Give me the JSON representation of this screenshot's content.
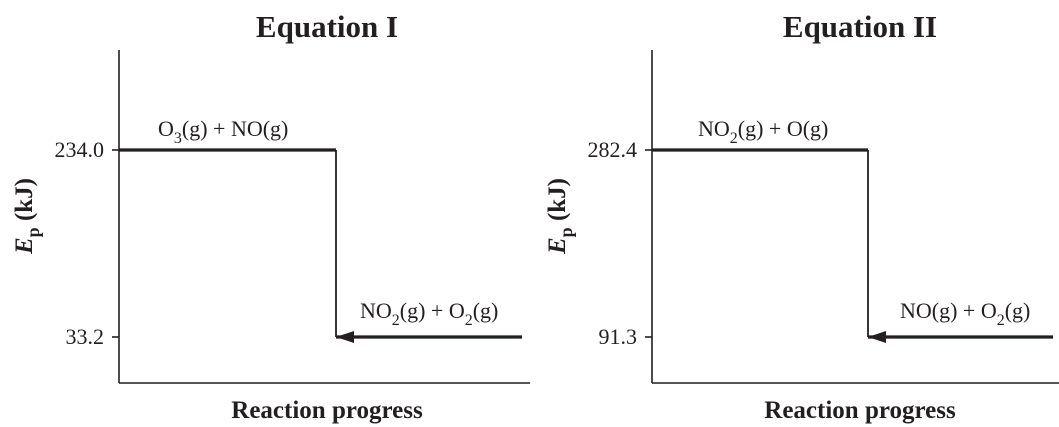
{
  "chart_data": [
    {
      "type": "energy_diagram",
      "title": "Equation I",
      "xlabel": "Reaction progress",
      "ylabel": {
        "symbol": "E",
        "subscript": "p",
        "unit": " (kJ)"
      },
      "reactants": {
        "energy": 234.0,
        "tick_label": "234.0",
        "species": [
          {
            "text": "O",
            "sub": "3"
          },
          {
            "text": "(g) + NO(g)"
          }
        ]
      },
      "products": {
        "energy": 33.2,
        "tick_label": "33.2",
        "species": [
          {
            "text": "NO",
            "sub": "2"
          },
          {
            "text": "(g) + O"
          },
          {
            "text": "",
            "sub": "2"
          },
          {
            "text": "(g)"
          }
        ]
      }
    },
    {
      "type": "energy_diagram",
      "title": "Equation II",
      "xlabel": "Reaction progress",
      "ylabel": {
        "symbol": "E",
        "subscript": "p",
        "unit": " (kJ)"
      },
      "reactants": {
        "energy": 282.4,
        "tick_label": "282.4",
        "species": [
          {
            "text": "NO",
            "sub": "2"
          },
          {
            "text": "(g) + O(g)"
          }
        ]
      },
      "products": {
        "energy": 91.3,
        "tick_label": "91.3",
        "species": [
          {
            "text": "NO(g) + O"
          },
          {
            "text": "",
            "sub": "2"
          },
          {
            "text": "(g)"
          }
        ]
      }
    }
  ]
}
